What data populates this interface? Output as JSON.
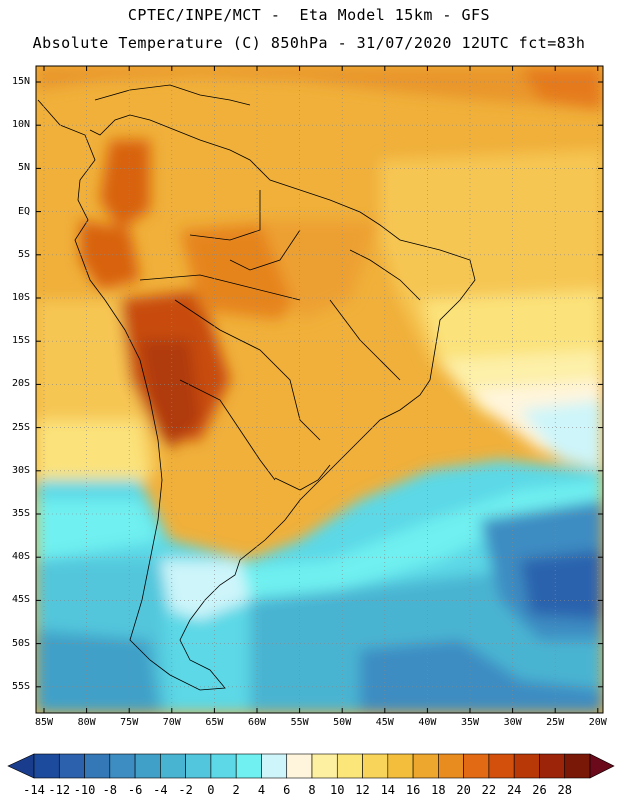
{
  "header": {
    "line1": "CPTEC/INPE/MCT -  Eta Model 15km - GFS",
    "line2": "Absolute Temperature (C) 850hPa - 31/07/2020 12UTC fct=83h"
  },
  "map": {
    "lat_labels": [
      "15N",
      "10N",
      "5N",
      "EQ",
      "5S",
      "10S",
      "15S",
      "20S",
      "25S",
      "30S",
      "35S",
      "40S",
      "45S",
      "50S",
      "55S"
    ],
    "lon_labels": [
      "85W",
      "80W",
      "75W",
      "70W",
      "65W",
      "60W",
      "55W",
      "50W",
      "45W",
      "40W",
      "35W",
      "30W",
      "25W",
      "20W"
    ]
  },
  "colorbar": {
    "labels": [
      "-14",
      "-12",
      "-10",
      "-8",
      "-6",
      "-4",
      "-2",
      "0",
      "2",
      "4",
      "6",
      "8",
      "10",
      "12",
      "14",
      "16",
      "18",
      "20",
      "22",
      "24",
      "26",
      "28"
    ],
    "colors": [
      "#1c4a9c",
      "#2c62ad",
      "#3578b8",
      "#3d8cc2",
      "#40a0c8",
      "#48b4d2",
      "#52c6dc",
      "#5cd8e6",
      "#70f0f0",
      "#cdf5fa",
      "#fff5dc",
      "#fdf0a0",
      "#fbe67a",
      "#f8d45a",
      "#f2be3c",
      "#eda62e",
      "#e98c20",
      "#e26a14",
      "#d2500c",
      "#b83808",
      "#9c2408",
      "#7a1808"
    ],
    "low_color": "#1a3c8c",
    "high_color": "#6a0a1a"
  }
}
